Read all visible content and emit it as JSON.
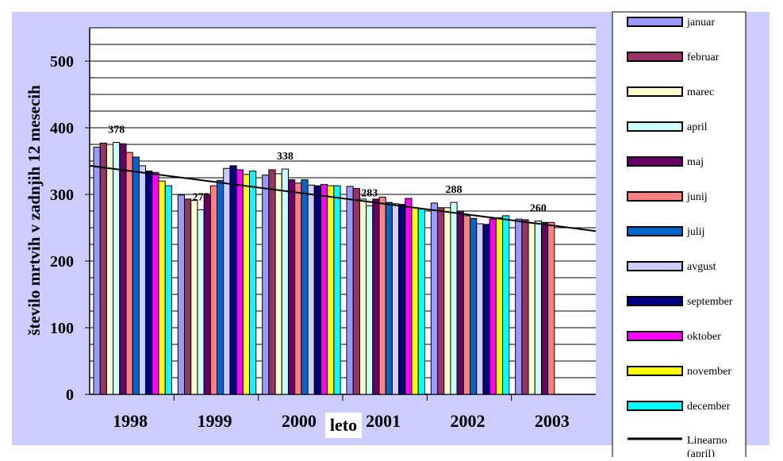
{
  "chart_data": {
    "type": "bar",
    "ylabel": "število mrtvih v zadnjih 12 mesecih",
    "xlabel": "leto",
    "ylim": [
      0,
      550
    ],
    "yticks": [
      0,
      100,
      200,
      300,
      400,
      500
    ],
    "grid": true,
    "legend_position": "right",
    "categories": [
      "1998",
      "1999",
      "2000",
      "2001",
      "2002",
      "2003"
    ],
    "series": [
      {
        "name": "januar",
        "color": "#9999ff",
        "values": [
          371,
          299,
          329,
          312,
          287,
          263
        ]
      },
      {
        "name": "februar",
        "color": "#993366",
        "values": [
          377,
          293,
          337,
          309,
          280,
          262
        ]
      },
      {
        "name": "marec",
        "color": "#ffffcc",
        "values": [
          375,
          291,
          331,
          293,
          280,
          257
        ]
      },
      {
        "name": "april",
        "color": "#ccffff",
        "values": [
          378,
          277,
          338,
          283,
          288,
          260
        ]
      },
      {
        "name": "maj",
        "color": "#660066",
        "values": [
          376,
          300,
          322,
          293,
          275,
          258
        ]
      },
      {
        "name": "junij",
        "color": "#ff8080",
        "values": [
          363,
          313,
          317,
          296,
          268,
          258
        ]
      },
      {
        "name": "julij",
        "color": "#0066cc",
        "values": [
          356,
          321,
          322,
          288,
          264,
          null
        ]
      },
      {
        "name": "avgust",
        "color": "#ccccff",
        "values": [
          343,
          339,
          314,
          286,
          256,
          null
        ]
      },
      {
        "name": "september",
        "color": "#000080",
        "values": [
          335,
          343,
          313,
          285,
          255,
          null
        ]
      },
      {
        "name": "oktober",
        "color": "#ff00ff",
        "values": [
          333,
          337,
          315,
          294,
          263,
          null
        ]
      },
      {
        "name": "november",
        "color": "#ffff00",
        "values": [
          320,
          330,
          313,
          280,
          265,
          null
        ]
      },
      {
        "name": "december",
        "color": "#00ffff",
        "values": [
          313,
          335,
          313,
          278,
          268,
          null
        ]
      }
    ],
    "trendline": {
      "name": "Linearno (april)",
      "color": "#000000",
      "start": 343,
      "end": 245
    },
    "data_labels": [
      {
        "category": "1998",
        "value": 378,
        "text": "378"
      },
      {
        "category": "1999",
        "value": 277,
        "text": "277"
      },
      {
        "category": "2000",
        "value": 338,
        "text": "338"
      },
      {
        "category": "2001",
        "value": 283,
        "text": "283"
      },
      {
        "category": "2002",
        "value": 288,
        "text": "288"
      },
      {
        "category": "2003",
        "value": 260,
        "text": "260"
      }
    ]
  },
  "colors": {
    "background": "#ccccff",
    "plot_area": "#ffffff",
    "grid": "#000000"
  }
}
